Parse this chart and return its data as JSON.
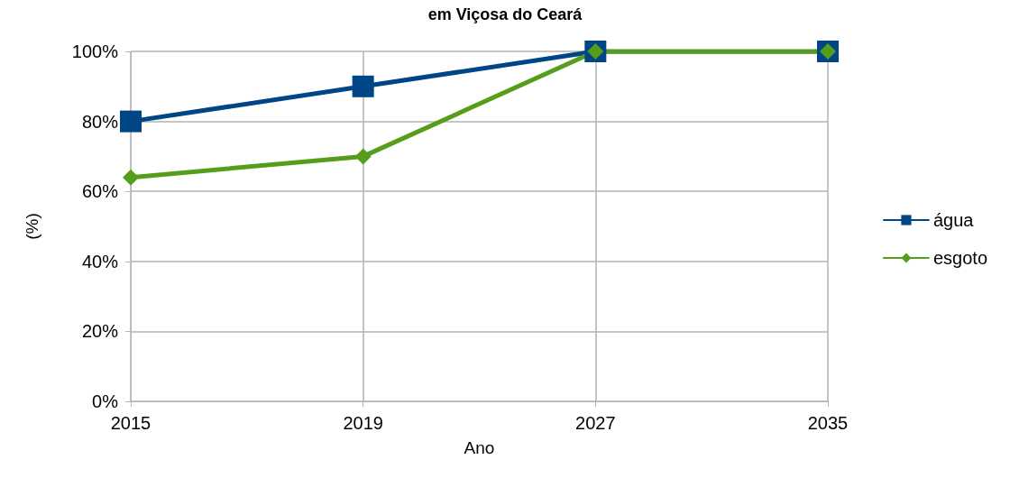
{
  "chart_data": {
    "type": "line",
    "title": "em Viçosa do Ceará",
    "xlabel": "Ano",
    "ylabel": "(%)",
    "categories": [
      "2015",
      "2019",
      "2027",
      "2035"
    ],
    "series": [
      {
        "name": "água",
        "color": "#004586",
        "marker": "square",
        "values": [
          80,
          90,
          100,
          100
        ]
      },
      {
        "name": "esgoto",
        "color": "#579d1c",
        "marker": "diamond",
        "values": [
          64,
          70,
          100,
          100
        ]
      }
    ],
    "ylim": [
      0,
      100
    ],
    "yticks": [
      {
        "value": 0,
        "label": "0%"
      },
      {
        "value": 20,
        "label": "20%"
      },
      {
        "value": 40,
        "label": "40%"
      },
      {
        "value": 60,
        "label": "60%"
      },
      {
        "value": 80,
        "label": "80%"
      },
      {
        "value": 100,
        "label": "100%"
      }
    ],
    "grid": true,
    "legend": "right",
    "line_style": "solid"
  }
}
